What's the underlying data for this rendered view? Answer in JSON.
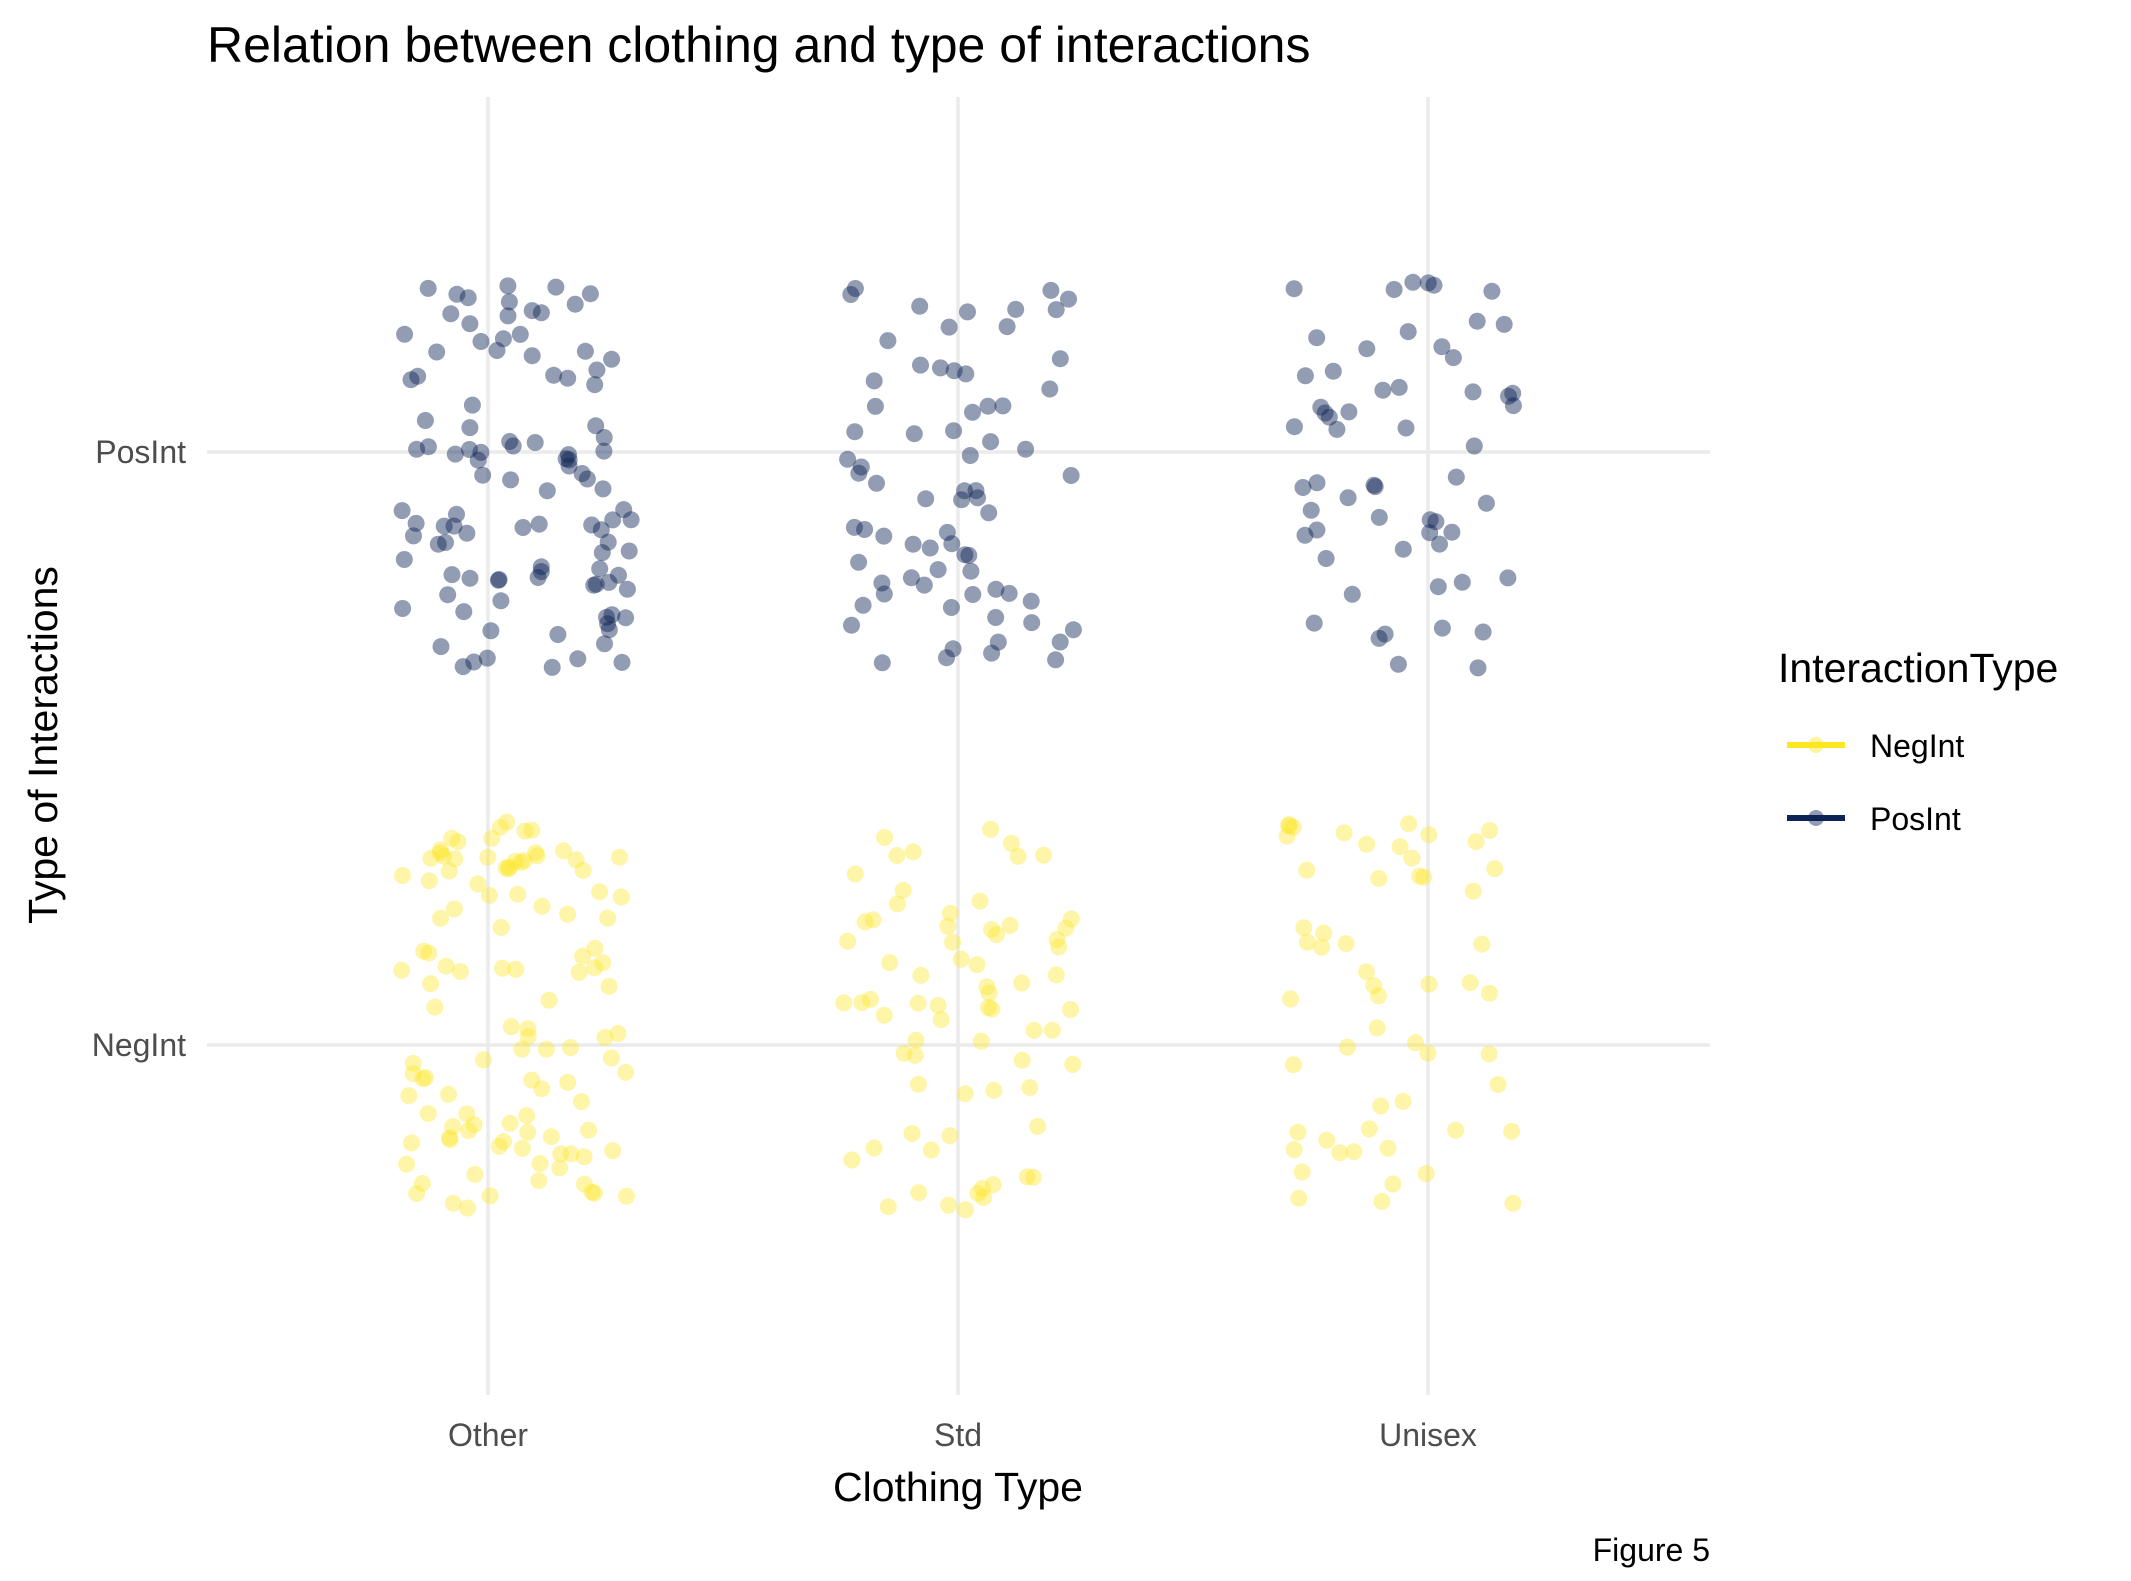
{
  "chart_data": {
    "type": "scatter",
    "title": "Relation between clothing and type of interactions",
    "xlabel": "Clothing Type",
    "ylabel": "Type of Interactions",
    "caption": "Figure 5",
    "x_categories": [
      "Other",
      "Std",
      "Unisex"
    ],
    "y_categories": [
      "NegInt",
      "PosInt"
    ],
    "jitter": true,
    "grid": true,
    "legend": {
      "title": "InteractionType",
      "placement": "right",
      "items": [
        {
          "label": "NegInt",
          "color": "#fde725"
        },
        {
          "label": "PosInt",
          "color": "#0d2454"
        }
      ]
    },
    "series": [
      {
        "name": "NegInt",
        "color": "#fde725",
        "opacity": 0.4,
        "counts": {
          "Other": 110,
          "Std": 70,
          "Unisex": 55
        }
      },
      {
        "name": "PosInt",
        "color": "#0d2454",
        "opacity": 0.45,
        "counts": {
          "Other": 105,
          "Std": 72,
          "Unisex": 58
        }
      }
    ]
  }
}
